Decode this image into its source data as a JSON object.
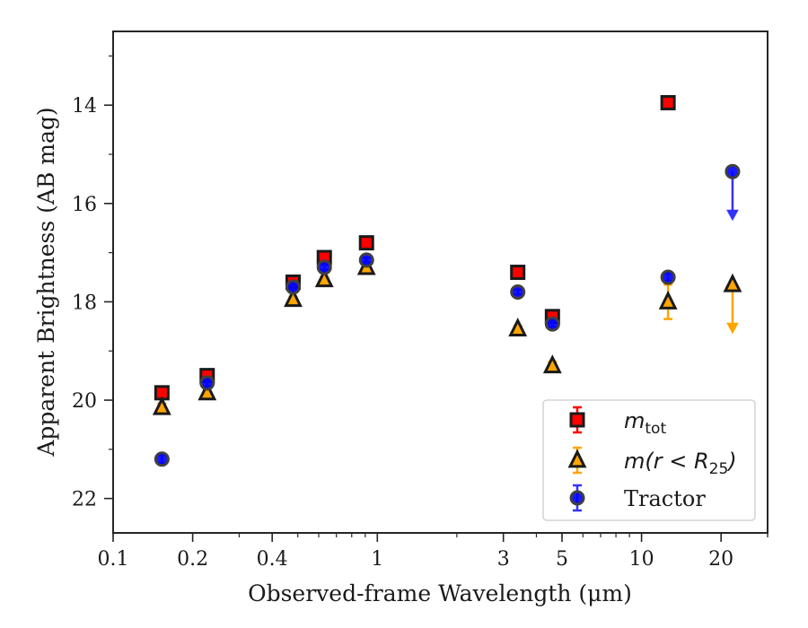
{
  "chart_data": {
    "type": "scatter",
    "xlabel": "Observed-frame Wavelength (μm)",
    "ylabel": "Apparent Brightness (AB mag)",
    "x_scale": "log",
    "xlim": [
      0.1,
      30
    ],
    "ylim": [
      22.7,
      12.5
    ],
    "y_inverted": true,
    "x_ticks": [
      0.1,
      0.2,
      0.4,
      1,
      3,
      5,
      10,
      20
    ],
    "x_tick_labels": [
      "0.1",
      "0.2",
      "0.4",
      "1",
      "3",
      "5",
      "10",
      "20"
    ],
    "y_ticks": [
      14,
      16,
      18,
      20,
      22
    ],
    "y_tick_labels": [
      "14",
      "16",
      "18",
      "20",
      "22"
    ],
    "grid": false,
    "legend": {
      "placement": "bottom-right",
      "entries": [
        {
          "series": "m_tot",
          "math": "m",
          "sub": "tot",
          "suffix": ""
        },
        {
          "series": "m_r25",
          "math": "m(r < R",
          "sub": "25",
          "suffix": ")"
        },
        {
          "series": "tractor",
          "label": "Tractor"
        }
      ]
    },
    "series": [
      {
        "key": "m_tot",
        "marker": "square",
        "color": "#ff0000",
        "edge": "#1a1a1a",
        "errcolor": "#ff0000",
        "points": [
          {
            "x": 0.153,
            "y": 19.85,
            "err": 0.1
          },
          {
            "x": 0.227,
            "y": 19.5,
            "err": 0.08
          },
          {
            "x": 0.48,
            "y": 17.6,
            "err": 0.05
          },
          {
            "x": 0.63,
            "y": 17.1,
            "err": 0.05
          },
          {
            "x": 0.91,
            "y": 16.8,
            "err": 0.05
          },
          {
            "x": 3.4,
            "y": 17.4,
            "err": 0.05
          },
          {
            "x": 4.6,
            "y": 18.3,
            "err": 0.08
          },
          {
            "x": 12.6,
            "y": 13.95,
            "err": 0.05
          }
        ]
      },
      {
        "key": "m_r25",
        "marker": "triangle",
        "color": "#ffa500",
        "edge": "#1a1a1a",
        "errcolor": "#ffa500",
        "points": [
          {
            "x": 0.153,
            "y": 20.15,
            "err": 0.08
          },
          {
            "x": 0.227,
            "y": 19.85,
            "err": 0.08
          },
          {
            "x": 0.48,
            "y": 17.95,
            "err": 0.05
          },
          {
            "x": 0.63,
            "y": 17.55,
            "err": 0.05
          },
          {
            "x": 0.91,
            "y": 17.3,
            "err": 0.05
          },
          {
            "x": 3.4,
            "y": 18.55,
            "err": 0.06
          },
          {
            "x": 4.6,
            "y": 19.3,
            "err": 0.08
          },
          {
            "x": 12.6,
            "y": 18.0,
            "err": 0.35
          },
          {
            "x": 22.1,
            "y": 17.65,
            "upper_limit": true,
            "arrow_to": 18.6
          }
        ]
      },
      {
        "key": "tractor",
        "marker": "circle",
        "color": "#0000ff",
        "edge": "#404040",
        "errcolor": "#3333ff",
        "points": [
          {
            "x": 0.153,
            "y": 21.2,
            "err": 0.08
          },
          {
            "x": 0.227,
            "y": 19.65,
            "err": 0.06
          },
          {
            "x": 0.48,
            "y": 17.7,
            "err": 0.05
          },
          {
            "x": 0.63,
            "y": 17.3,
            "err": 0.05
          },
          {
            "x": 0.91,
            "y": 17.15,
            "err": 0.05
          },
          {
            "x": 3.4,
            "y": 17.8,
            "err": 0.05
          },
          {
            "x": 4.6,
            "y": 18.45,
            "err": 0.06
          },
          {
            "x": 12.6,
            "y": 17.5,
            "err": 0.08
          },
          {
            "x": 22.1,
            "y": 15.35,
            "upper_limit": true,
            "arrow_to": 16.3
          }
        ]
      }
    ]
  }
}
